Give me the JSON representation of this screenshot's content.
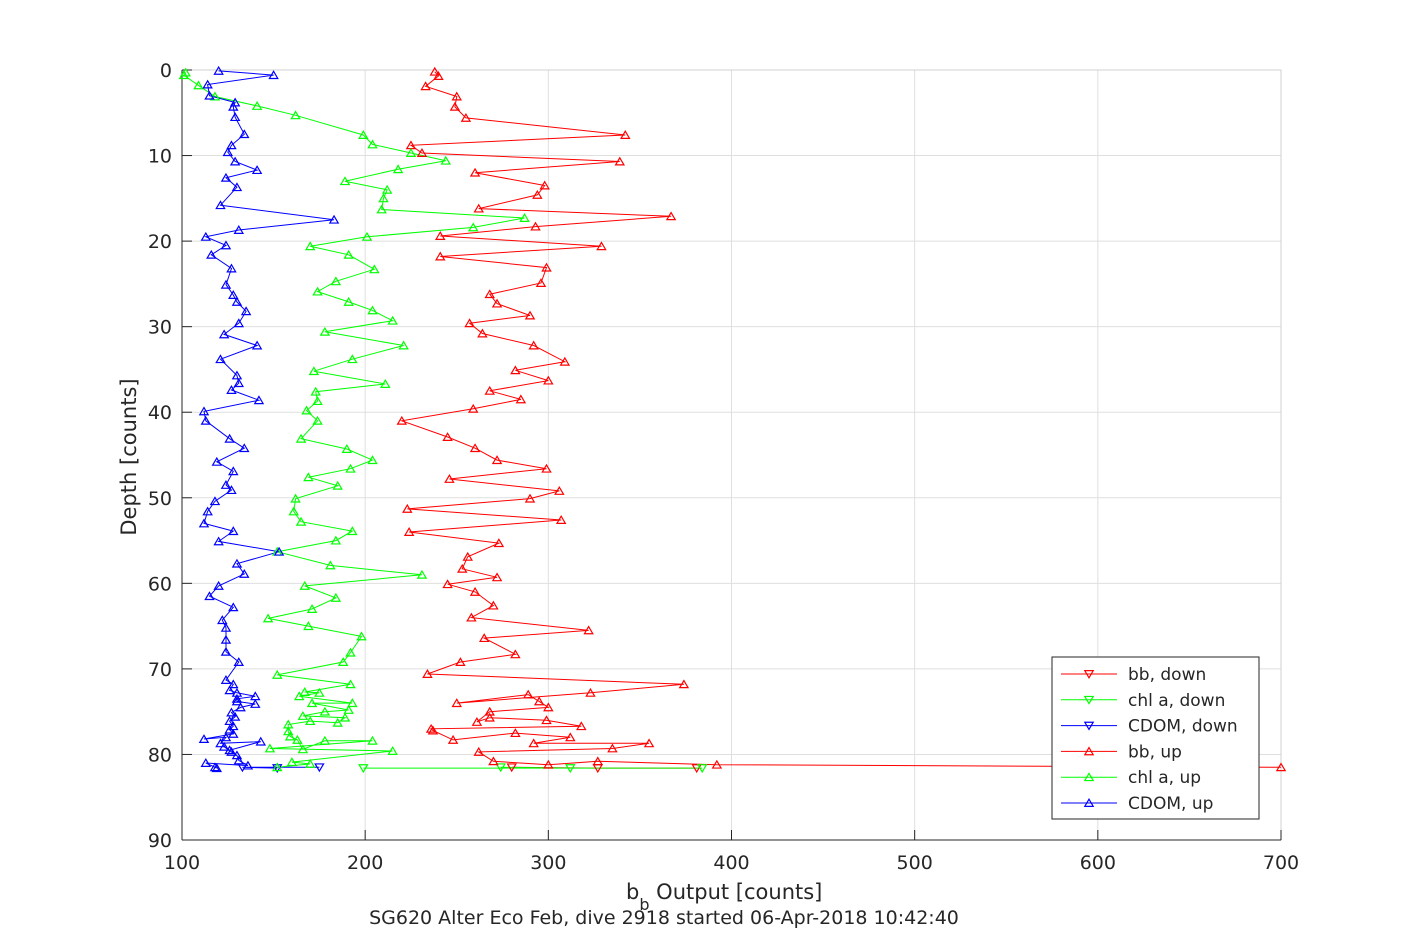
{
  "chart_data": {
    "type": "line",
    "xlabel_main": "b",
    "xlabel_sub": "b",
    "xlabel_rest": " Output [counts]",
    "ylabel": "Depth [counts]",
    "footer": "SG620 Alter Eco Feb, dive 2918 started 06-Apr-2018 10:42:40",
    "xlim": [
      100,
      700
    ],
    "ylim": [
      0,
      90
    ],
    "y_reversed": true,
    "grid": true,
    "legend_position": "bottom-right",
    "xticks": [
      100,
      200,
      300,
      400,
      500,
      600,
      700
    ],
    "yticks": [
      0,
      10,
      20,
      30,
      40,
      50,
      60,
      70,
      80,
      90
    ],
    "xtick_labels": [
      "100",
      "200",
      "300",
      "400",
      "500",
      "600",
      "700"
    ],
    "ytick_labels": [
      "0",
      "10",
      "20",
      "30",
      "40",
      "50",
      "60",
      "70",
      "80",
      "90"
    ],
    "series": [
      {
        "name": "bb, down",
        "color": "#ff0000",
        "marker": "triangle-down",
        "points": [
          [
            280,
            81.5
          ],
          [
            327,
            81.6
          ],
          [
            381,
            81.6
          ]
        ]
      },
      {
        "name": "chl a, down",
        "color": "#00ff00",
        "marker": "triangle-down",
        "points": [
          [
            274,
            81.5
          ],
          [
            312,
            81.6
          ],
          [
            384,
            81.6
          ],
          [
            199,
            81.6
          ]
        ]
      },
      {
        "name": "CDOM, down",
        "color": "#0000ff",
        "marker": "triangle-down",
        "points": [
          [
            175,
            81.5
          ],
          [
            133,
            81.5
          ],
          [
            152,
            81.6
          ]
        ]
      },
      {
        "name": "bb, up",
        "color": "#ff0000",
        "marker": "triangle-up",
        "points": [
          [
            700,
            81.5
          ],
          [
            392,
            81.2
          ],
          [
            327,
            80.8
          ],
          [
            300,
            81.2
          ],
          [
            270,
            80.8
          ],
          [
            262,
            79.7
          ],
          [
            335,
            79.3
          ],
          [
            355,
            78.7
          ],
          [
            292,
            78.7
          ],
          [
            312,
            78
          ],
          [
            282,
            77.5
          ],
          [
            248,
            78.3
          ],
          [
            237,
            77.2
          ],
          [
            236,
            77
          ],
          [
            318,
            76.7
          ],
          [
            299,
            76
          ],
          [
            268,
            75.7
          ],
          [
            261,
            76.2
          ],
          [
            268,
            75
          ],
          [
            300,
            74.5
          ],
          [
            295,
            73.8
          ],
          [
            289,
            73
          ],
          [
            250,
            74
          ],
          [
            323,
            72.8
          ],
          [
            374,
            71.8
          ],
          [
            234,
            70.6
          ],
          [
            252,
            69.2
          ],
          [
            282,
            68.3
          ],
          [
            265,
            66.4
          ],
          [
            322,
            65.5
          ],
          [
            258,
            64
          ],
          [
            270,
            62.6
          ],
          [
            260,
            61
          ],
          [
            245,
            60.1
          ],
          [
            272,
            59.3
          ],
          [
            253,
            58.3
          ],
          [
            256,
            56.9
          ],
          [
            273,
            55.3
          ],
          [
            224,
            54
          ],
          [
            307,
            52.6
          ],
          [
            223,
            51.3
          ],
          [
            290,
            50.1
          ],
          [
            306,
            49.2
          ],
          [
            246,
            47.8
          ],
          [
            299,
            46.6
          ],
          [
            272,
            45.6
          ],
          [
            260,
            44.2
          ],
          [
            245,
            42.9
          ],
          [
            220,
            41
          ],
          [
            259,
            39.6
          ],
          [
            285,
            38.5
          ],
          [
            268,
            37.5
          ],
          [
            300,
            36.3
          ],
          [
            282,
            35.1
          ],
          [
            309,
            34.1
          ],
          [
            292,
            32.2
          ],
          [
            264,
            30.8
          ],
          [
            257,
            29.6
          ],
          [
            290,
            28.7
          ],
          [
            272,
            27.3
          ],
          [
            268,
            26.2
          ],
          [
            296,
            24.9
          ],
          [
            299,
            23.1
          ],
          [
            241,
            21.8
          ],
          [
            329,
            20.6
          ],
          [
            241,
            19.4
          ],
          [
            293,
            18.3
          ],
          [
            367,
            17.1
          ],
          [
            262,
            16.2
          ],
          [
            294,
            14.6
          ],
          [
            298,
            13.5
          ],
          [
            260,
            12
          ],
          [
            339,
            10.7
          ],
          [
            231,
            9.7
          ],
          [
            225,
            8.8
          ],
          [
            342,
            7.6
          ],
          [
            255,
            5.6
          ],
          [
            249,
            4.3
          ],
          [
            250,
            3.1
          ],
          [
            233,
            1.9
          ],
          [
            240,
            0.7
          ],
          [
            238,
            0.2
          ]
        ]
      },
      {
        "name": "chl a, up",
        "color": "#00ff00",
        "marker": "triangle-up",
        "points": [
          [
            152,
            81.5
          ],
          [
            170,
            81.1
          ],
          [
            160,
            80.9
          ],
          [
            215,
            79.6
          ],
          [
            148,
            79.3
          ],
          [
            204,
            78.4
          ],
          [
            178,
            78.4
          ],
          [
            166,
            79.4
          ],
          [
            163,
            78.3
          ],
          [
            159,
            77.9
          ],
          [
            158,
            77.3
          ],
          [
            158,
            76.5
          ],
          [
            170,
            76.1
          ],
          [
            185,
            76.3
          ],
          [
            189,
            75.7
          ],
          [
            166,
            75.5
          ],
          [
            178,
            75
          ],
          [
            191,
            74.8
          ],
          [
            171,
            74
          ],
          [
            193,
            74
          ],
          [
            164,
            73.2
          ],
          [
            175,
            72.8
          ],
          [
            167,
            72.7
          ],
          [
            192,
            71.8
          ],
          [
            152,
            70.7
          ],
          [
            188,
            69.2
          ],
          [
            192,
            68.1
          ],
          [
            198,
            66.2
          ],
          [
            169,
            65
          ],
          [
            147,
            64.1
          ],
          [
            171,
            63
          ],
          [
            184,
            61.7
          ],
          [
            167,
            60.3
          ],
          [
            231,
            59
          ],
          [
            181,
            57.9
          ],
          [
            152,
            56.3
          ],
          [
            184,
            55
          ],
          [
            193,
            53.9
          ],
          [
            165,
            52.8
          ],
          [
            161,
            51.6
          ],
          [
            162,
            50.1
          ],
          [
            185,
            48.6
          ],
          [
            169,
            47.6
          ],
          [
            192,
            46.6
          ],
          [
            204,
            45.6
          ],
          [
            190,
            44.3
          ],
          [
            165,
            43.1
          ],
          [
            174,
            41
          ],
          [
            168,
            39.8
          ],
          [
            174,
            38.7
          ],
          [
            173,
            37.6
          ],
          [
            211,
            36.7
          ],
          [
            172,
            35.2
          ],
          [
            193,
            33.8
          ],
          [
            221,
            32.2
          ],
          [
            178,
            30.6
          ],
          [
            215,
            29.3
          ],
          [
            204,
            28.1
          ],
          [
            191,
            27.1
          ],
          [
            174,
            25.9
          ],
          [
            184,
            24.7
          ],
          [
            205,
            23.3
          ],
          [
            191,
            21.6
          ],
          [
            170,
            20.6
          ],
          [
            201,
            19.5
          ],
          [
            259,
            18.4
          ],
          [
            287,
            17.3
          ],
          [
            209,
            16.3
          ],
          [
            210,
            15
          ],
          [
            212,
            14
          ],
          [
            189,
            13
          ],
          [
            218,
            11.6
          ],
          [
            244,
            10.6
          ],
          [
            225,
            9.7
          ],
          [
            204,
            8.7
          ],
          [
            199,
            7.6
          ],
          [
            162,
            5.3
          ],
          [
            141,
            4.2
          ],
          [
            118,
            3.1
          ],
          [
            109,
            1.8
          ],
          [
            101,
            0.6
          ],
          [
            102,
            0.3
          ]
        ]
      },
      {
        "name": "CDOM, up",
        "color": "#0000ff",
        "marker": "triangle-up",
        "points": [
          [
            118,
            81.5
          ],
          [
            119,
            81.6
          ],
          [
            113,
            81
          ],
          [
            136,
            81.3
          ],
          [
            131,
            80.7
          ],
          [
            130,
            80.1
          ],
          [
            127,
            79.7
          ],
          [
            123,
            79.1
          ],
          [
            126,
            79.5
          ],
          [
            143,
            78.5
          ],
          [
            121,
            78.7
          ],
          [
            124,
            78
          ],
          [
            112,
            78.2
          ],
          [
            128,
            77.6
          ],
          [
            126,
            77.1
          ],
          [
            128,
            76.7
          ],
          [
            126,
            76.1
          ],
          [
            129,
            75.6
          ],
          [
            127,
            75.1
          ],
          [
            132,
            74.5
          ],
          [
            140,
            74.1
          ],
          [
            130,
            73.8
          ],
          [
            130,
            73.5
          ],
          [
            140,
            73.2
          ],
          [
            130,
            72.8
          ],
          [
            126,
            72.5
          ],
          [
            128,
            71.8
          ],
          [
            124,
            71.3
          ],
          [
            131,
            69.2
          ],
          [
            124,
            68
          ],
          [
            124,
            66.6
          ],
          [
            124,
            65.2
          ],
          [
            122,
            64.3
          ],
          [
            128,
            62.8
          ],
          [
            115,
            61.5
          ],
          [
            120,
            60.3
          ],
          [
            134,
            58.9
          ],
          [
            130,
            57.7
          ],
          [
            153,
            56.3
          ],
          [
            120,
            55.1
          ],
          [
            128,
            53.9
          ],
          [
            112,
            53
          ],
          [
            114,
            51.6
          ],
          [
            118,
            50.4
          ],
          [
            127,
            49.1
          ],
          [
            124,
            48.5
          ],
          [
            128,
            46.9
          ],
          [
            119,
            45.8
          ],
          [
            134,
            44.2
          ],
          [
            126,
            43.1
          ],
          [
            113,
            41
          ],
          [
            112,
            39.9
          ],
          [
            142,
            38.6
          ],
          [
            127,
            37.4
          ],
          [
            131,
            36.6
          ],
          [
            130,
            35.7
          ],
          [
            121,
            33.8
          ],
          [
            141,
            32.2
          ],
          [
            123,
            30.9
          ],
          [
            131,
            29.6
          ],
          [
            135,
            28.2
          ],
          [
            130,
            27.1
          ],
          [
            128,
            26.3
          ],
          [
            124,
            25.1
          ],
          [
            127,
            23.2
          ],
          [
            116,
            21.6
          ],
          [
            124,
            20.5
          ],
          [
            113,
            19.5
          ],
          [
            131,
            18.7
          ],
          [
            183,
            17.5
          ],
          [
            121,
            15.8
          ],
          [
            130,
            13.7
          ],
          [
            124,
            12.6
          ],
          [
            141,
            11.7
          ],
          [
            129,
            10.7
          ],
          [
            125,
            9.6
          ],
          [
            127,
            8.8
          ],
          [
            134,
            7.5
          ],
          [
            129,
            5.5
          ],
          [
            128,
            4.3
          ],
          [
            129,
            3.8
          ],
          [
            115,
            3
          ],
          [
            114,
            1.7
          ],
          [
            150,
            0.6
          ],
          [
            120,
            0.1
          ]
        ]
      }
    ]
  }
}
